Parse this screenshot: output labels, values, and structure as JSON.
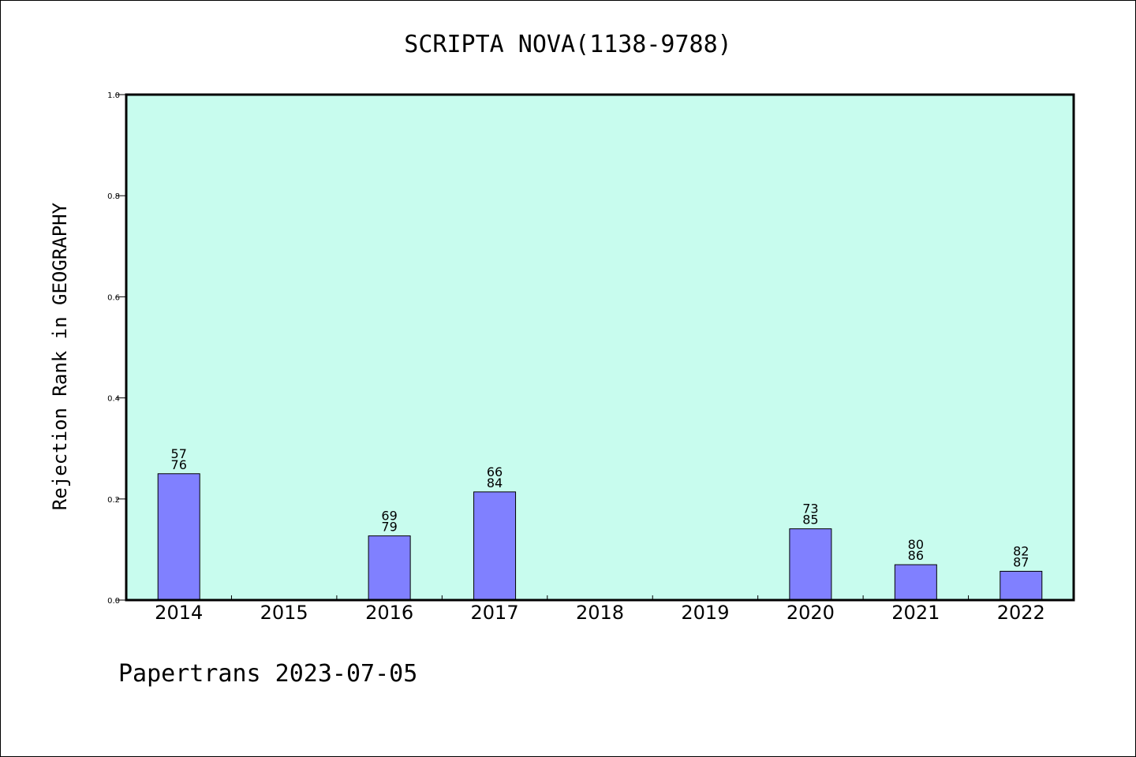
{
  "chart_data": {
    "type": "bar",
    "title": "SCRIPTA NOVA(1138-9788)",
    "ylabel": "Rejection Rank in GEOGRAPHY",
    "xlabel": "",
    "ylim": [
      0,
      1.0
    ],
    "yticks": [
      "0.0",
      "0.2",
      "0.4",
      "0.6",
      "0.8",
      "1.0"
    ],
    "categories": [
      "2014",
      "2015",
      "2016",
      "2017",
      "2018",
      "2019",
      "2020",
      "2021",
      "2022"
    ],
    "values": [
      0.25,
      0,
      0.127,
      0.214,
      0,
      0,
      0.141,
      0.07,
      0.057
    ],
    "labels_top": [
      "57",
      "",
      "69",
      "66",
      "",
      "",
      "73",
      "80",
      "82"
    ],
    "labels_bottom": [
      "76",
      "",
      "79",
      "84",
      "",
      "",
      "85",
      "86",
      "87"
    ],
    "grid": false,
    "colors": {
      "plot_background": "#c8fcee",
      "bar_fill": "#8080ff",
      "bar_stroke": "#000000"
    }
  },
  "footer": "Papertrans 2023-07-05"
}
